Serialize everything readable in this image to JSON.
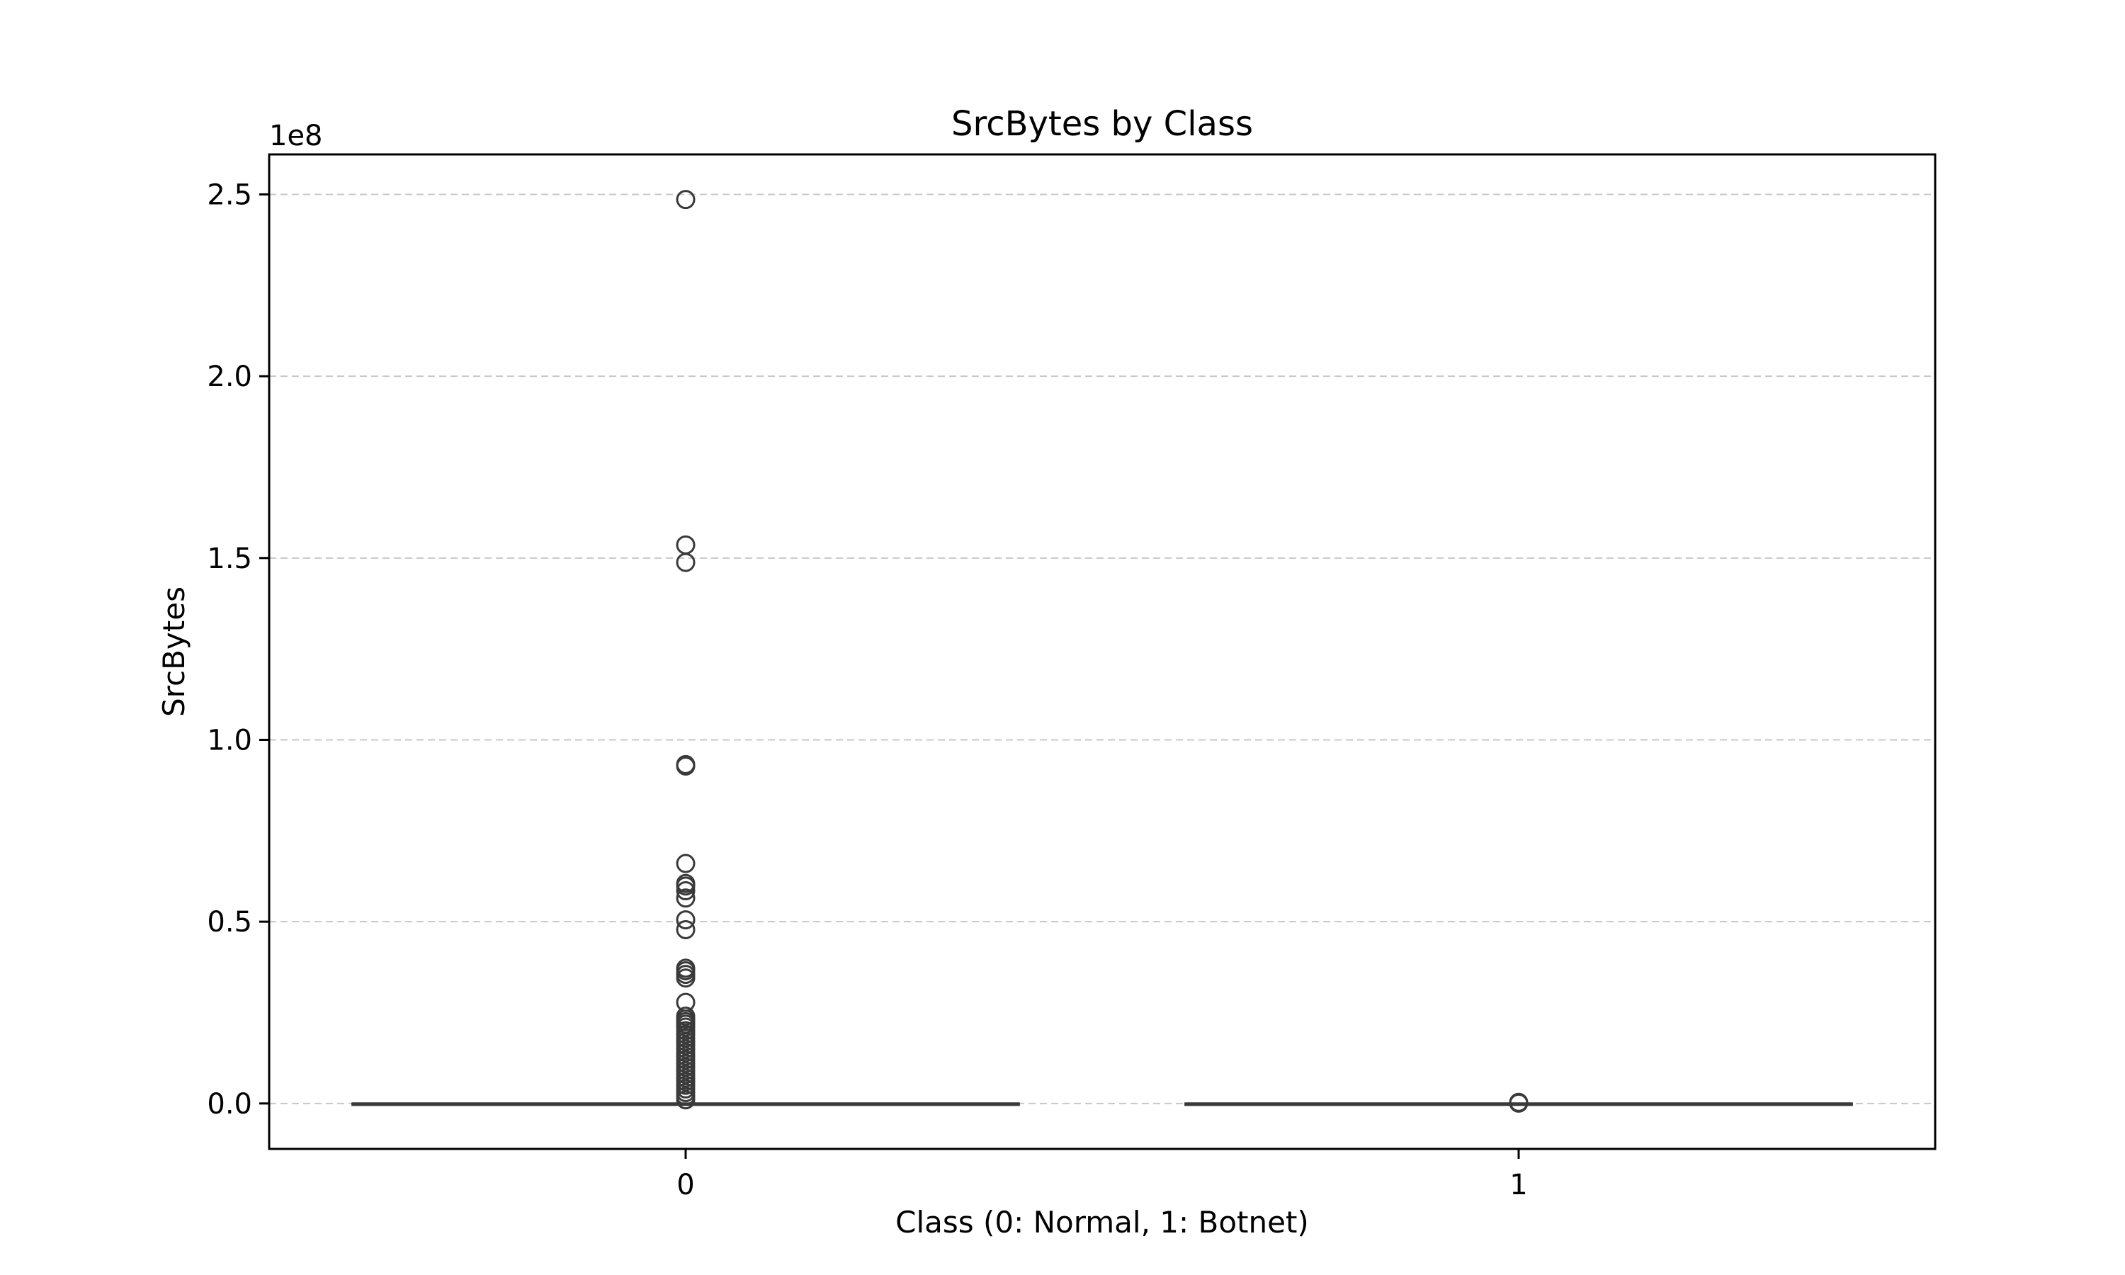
{
  "chart_data": {
    "type": "box",
    "title": "SrcBytes by Class",
    "xlabel": "Class (0: Normal, 1: Botnet)",
    "ylabel": "SrcBytes",
    "y_offset_label": "1e8",
    "ylim": [
      -0.125,
      2.61
    ],
    "yticks": [
      0.0,
      0.5,
      1.0,
      1.5,
      2.0,
      2.5
    ],
    "ytick_labels": [
      "0.0",
      "0.5",
      "1.0",
      "1.5",
      "2.0",
      "2.5"
    ],
    "categories": [
      "0",
      "1"
    ],
    "grid": {
      "y": true,
      "style": "dashed"
    },
    "boxes": [
      {
        "name": "0",
        "q1": 0.0,
        "median": 0.0,
        "q3": 0.0,
        "whisker_low": 0.0,
        "whisker_high": 0.0,
        "outliers": [
          2.486,
          1.536,
          1.488,
          0.932,
          0.928,
          0.66,
          0.605,
          0.598,
          0.585,
          0.565,
          0.505,
          0.478,
          0.372,
          0.365,
          0.355,
          0.345,
          0.278,
          0.24,
          0.232,
          0.225,
          0.218,
          0.21,
          0.2,
          0.19,
          0.18,
          0.17,
          0.16,
          0.15,
          0.14,
          0.13,
          0.12,
          0.11,
          0.1,
          0.09,
          0.08,
          0.07,
          0.06,
          0.05,
          0.04,
          0.03,
          0.02,
          0.01
        ]
      },
      {
        "name": "1",
        "q1": 0.0,
        "median": 0.0,
        "q3": 0.0,
        "whisker_low": 0.0,
        "whisker_high": 0.0,
        "outliers": [
          0.003,
          0.001
        ]
      }
    ]
  }
}
